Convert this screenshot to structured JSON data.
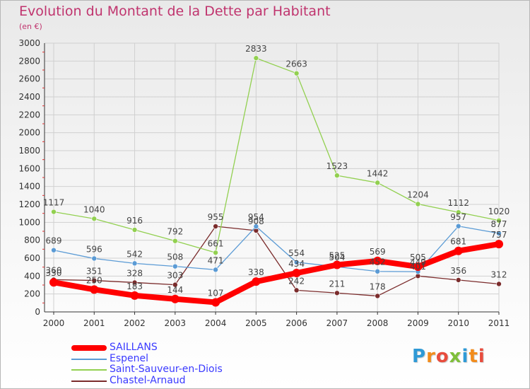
{
  "chart_data": {
    "type": "line",
    "title": "Evolution du Montant de la Dette par Habitant",
    "unit_label": "(en €)",
    "x": [
      "2000",
      "2001",
      "2002",
      "2003",
      "2004",
      "2005",
      "2006",
      "2007",
      "2008",
      "2009",
      "2010",
      "2011"
    ],
    "ylim": [
      0,
      3000
    ],
    "yticks": [
      0,
      200,
      400,
      600,
      800,
      1000,
      1200,
      1400,
      1600,
      1800,
      2000,
      2200,
      2400,
      2600,
      2800,
      3000
    ],
    "grid": true,
    "legend_position": "bottom-left",
    "series": [
      {
        "name": "SAILLANS",
        "color": "#ff0000",
        "values": [
          330,
          250,
          183,
          144,
          107,
          338,
          434,
          525,
          569,
          505,
          681,
          757
        ]
      },
      {
        "name": "Espenel",
        "color": "#5b9bd5",
        "values": [
          689,
          596,
          542,
          508,
          471,
          954,
          554,
          504,
          452,
          449,
          957,
          877
        ]
      },
      {
        "name": "Saint-Sauveur-en-Diois",
        "color": "#92d050",
        "values": [
          1117,
          1040,
          916,
          792,
          661,
          2833,
          2663,
          1523,
          1442,
          1204,
          1112,
          1020
        ]
      },
      {
        "name": "Chastel-Arnaud",
        "color": "#7b2c2c",
        "values": [
          360,
          351,
          328,
          303,
          955,
          908,
          242,
          211,
          178,
          401,
          356,
          312
        ]
      }
    ],
    "labels": {
      "SAILLANS": [
        "330",
        "250",
        "183",
        "144",
        "107",
        "338",
        "434",
        "525",
        "569",
        "505",
        "681",
        "757"
      ],
      "Espenel": [
        "689",
        "596",
        "542",
        "508",
        "471",
        "954",
        "554",
        "504",
        "452",
        "449",
        "957",
        "877"
      ],
      "Saint-Sauveur-en-Diois": [
        "1117",
        "1040",
        "916",
        "792",
        "661",
        "2833",
        "2663",
        "1523",
        "1442",
        "1204",
        "1112",
        "1020"
      ],
      "Chastel-Arnaud": [
        "360",
        "351",
        "328",
        "303",
        "955",
        "908",
        "242",
        "211",
        "178",
        "401",
        "356",
        "312"
      ]
    }
  },
  "legend": {
    "items": [
      {
        "label": "SAILLANS",
        "color": "#ff0000",
        "thickness": "heavy"
      },
      {
        "label": "Espenel",
        "color": "#5b9bd5",
        "thickness": "thin"
      },
      {
        "label": "Saint-Sauveur-en-Diois",
        "color": "#92d050",
        "thickness": "thin"
      },
      {
        "label": "Chastel-Arnaud",
        "color": "#7b2c2c",
        "thickness": "thin"
      }
    ]
  },
  "logo": {
    "letters": [
      "P",
      "r",
      "o",
      "x",
      "i",
      "t",
      "i"
    ]
  }
}
